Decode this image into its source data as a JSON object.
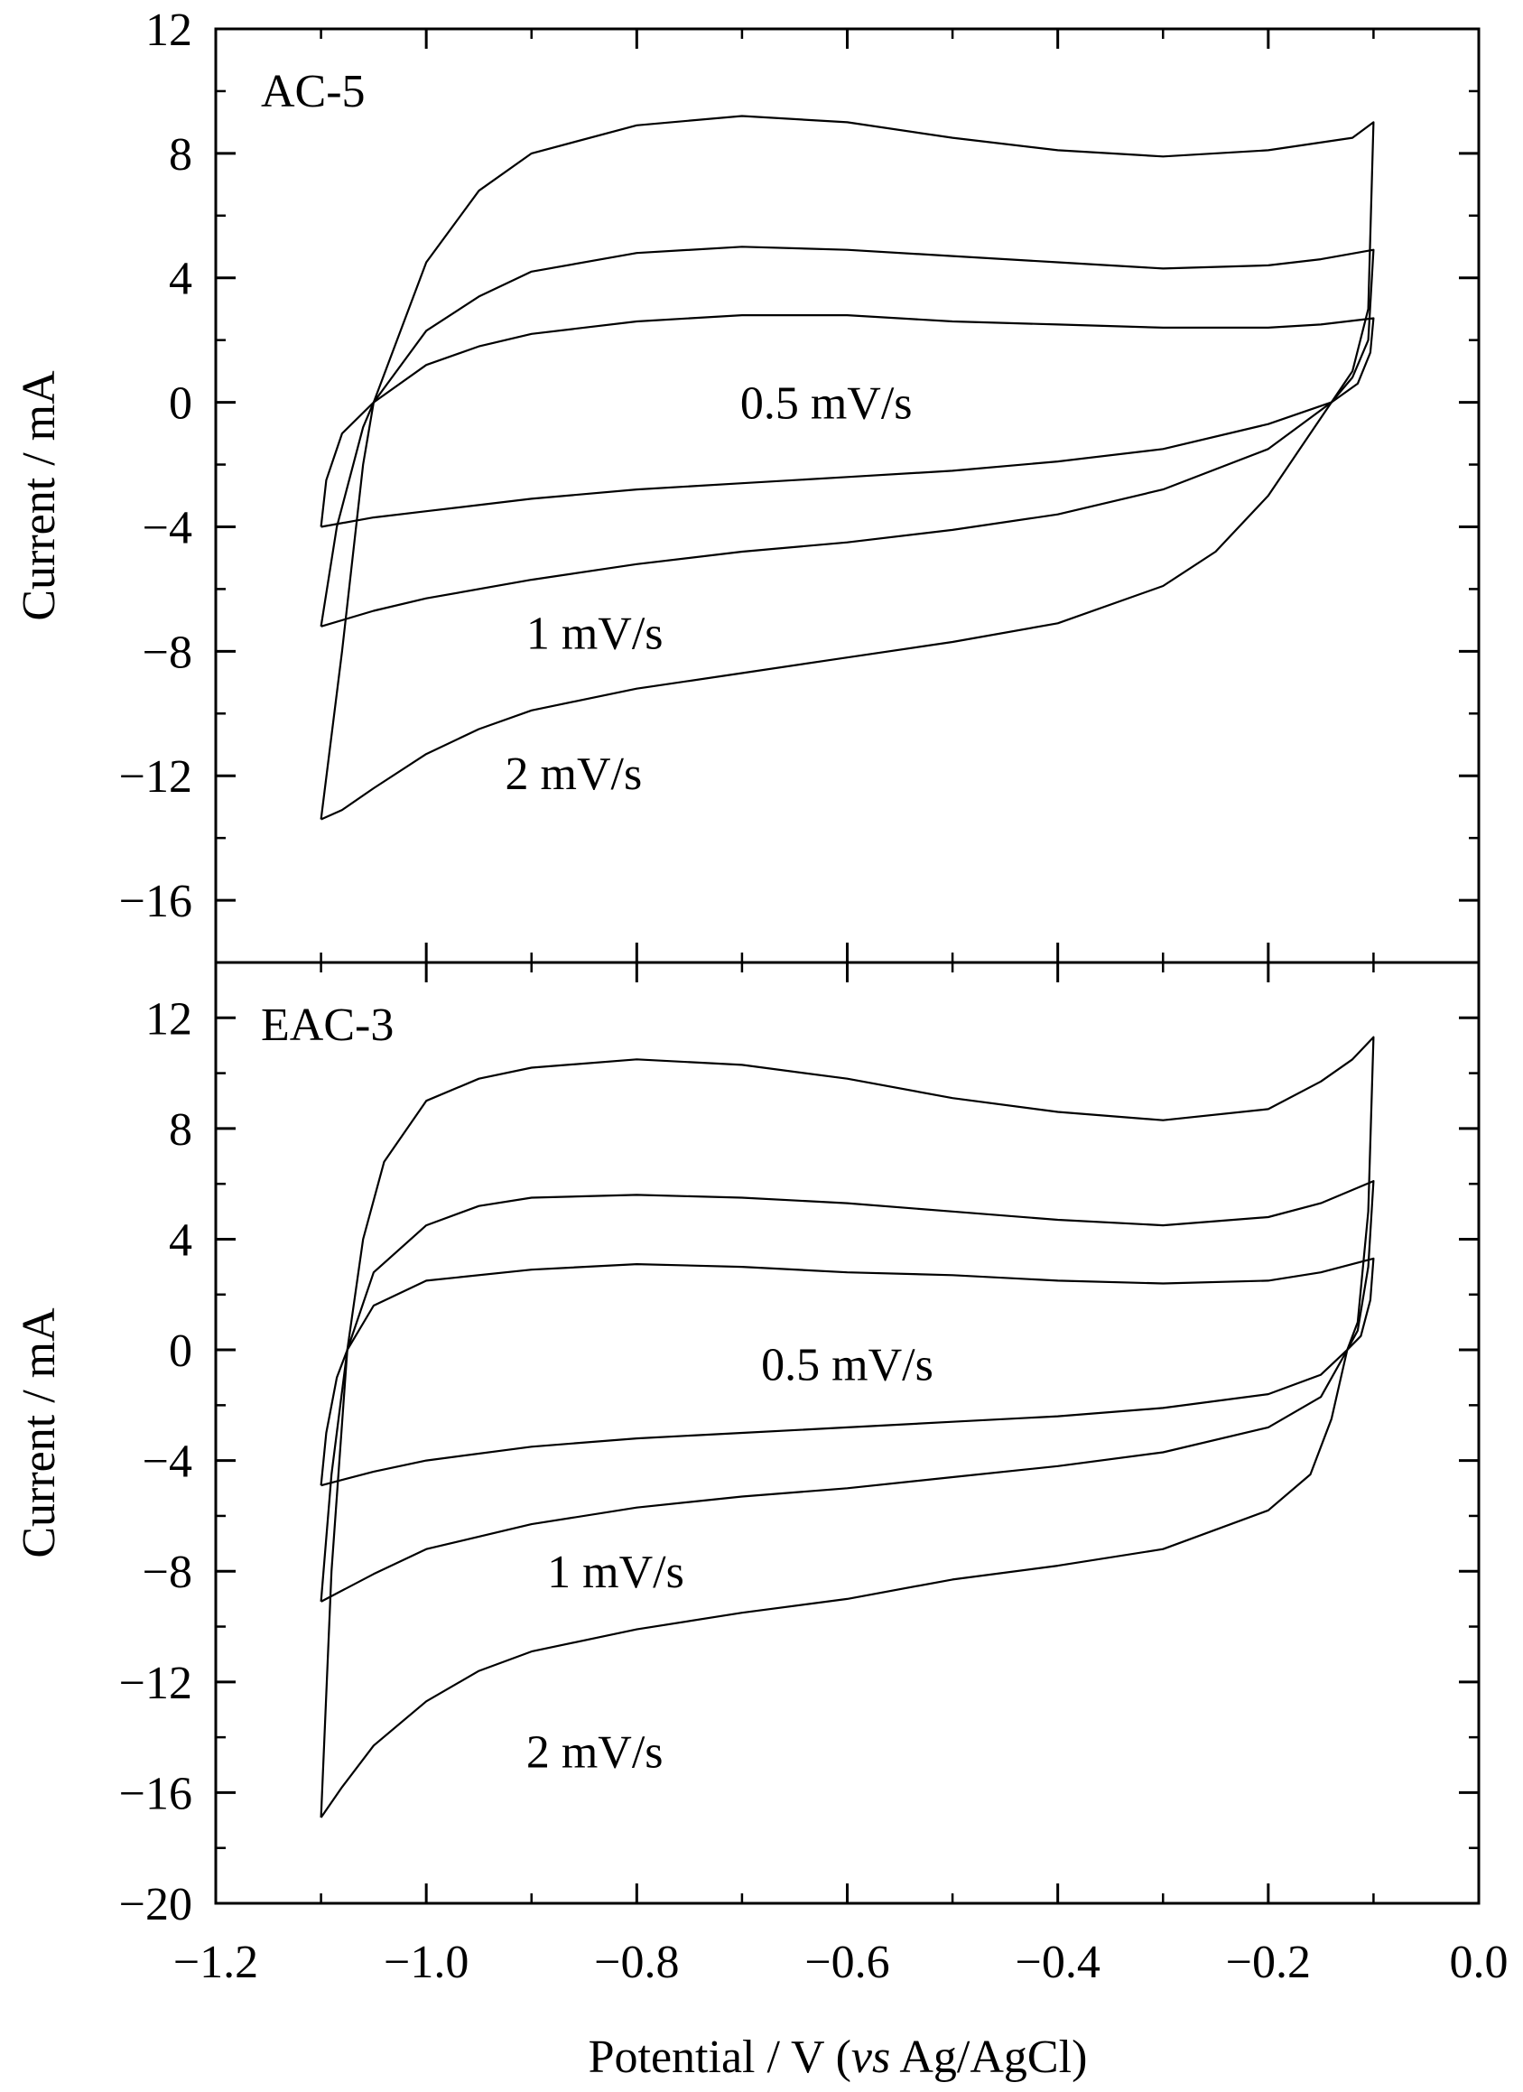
{
  "x_axis": {
    "label_parts": [
      "Potential / V (",
      "vs",
      " Ag/AgCl)"
    ],
    "range": [
      -1.2,
      0.0
    ],
    "ticks": [
      -1.2,
      -1.0,
      -0.8,
      -0.6,
      -0.4,
      -0.2,
      0.0
    ],
    "tick_labels": [
      "−1.2",
      "−1.0",
      "−0.8",
      "−0.6",
      "−0.4",
      "−0.2",
      "0.0"
    ],
    "minor_step": 0.1
  },
  "chart_data": [
    {
      "type": "line",
      "panel_label": "AC-5",
      "xlabel": "Potential / V (vs Ag/AgCl)",
      "ylabel": "Current / mA",
      "xlim": [
        -1.2,
        0.0
      ],
      "ylim": [
        -18,
        12
      ],
      "yticks": [
        -16,
        -12,
        -8,
        -4,
        0,
        4,
        8,
        12
      ],
      "ytick_labels": [
        "−16",
        "−12",
        "−8",
        "−4",
        "0",
        "4",
        "8",
        "12"
      ],
      "grid": false,
      "annotations": [
        {
          "text": "0.5 mV/s",
          "x": -0.62,
          "y": 0
        },
        {
          "text": "1 mV/s",
          "x": -0.84,
          "y": -7.4
        },
        {
          "text": "2 mV/s",
          "x": -0.86,
          "y": -11.9
        }
      ],
      "series": [
        {
          "label": "2 mV/s",
          "anodic": [
            [
              -1.1,
              -13.4
            ],
            [
              -1.08,
              -8.0
            ],
            [
              -1.06,
              -2.0
            ],
            [
              -1.05,
              0
            ],
            [
              -1.0,
              4.5
            ],
            [
              -0.95,
              6.8
            ],
            [
              -0.9,
              8.0
            ],
            [
              -0.8,
              8.9
            ],
            [
              -0.7,
              9.2
            ],
            [
              -0.6,
              9.0
            ],
            [
              -0.5,
              8.5
            ],
            [
              -0.4,
              8.1
            ],
            [
              -0.3,
              7.9
            ],
            [
              -0.2,
              8.1
            ],
            [
              -0.12,
              8.5
            ],
            [
              -0.1,
              9.0
            ]
          ],
          "cathodic": [
            [
              -0.1,
              9.0
            ],
            [
              -0.105,
              3.0
            ],
            [
              -0.12,
              1.0
            ],
            [
              -0.14,
              0
            ],
            [
              -0.17,
              -1.5
            ],
            [
              -0.2,
              -3.0
            ],
            [
              -0.25,
              -4.8
            ],
            [
              -0.3,
              -5.9
            ],
            [
              -0.4,
              -7.1
            ],
            [
              -0.5,
              -7.7
            ],
            [
              -0.6,
              -8.2
            ],
            [
              -0.7,
              -8.7
            ],
            [
              -0.8,
              -9.2
            ],
            [
              -0.9,
              -9.9
            ],
            [
              -0.95,
              -10.5
            ],
            [
              -1.0,
              -11.3
            ],
            [
              -1.05,
              -12.4
            ],
            [
              -1.08,
              -13.1
            ],
            [
              -1.1,
              -13.4
            ]
          ]
        },
        {
          "label": "1 mV/s",
          "anodic": [
            [
              -1.1,
              -7.2
            ],
            [
              -1.085,
              -4.0
            ],
            [
              -1.06,
              -0.8
            ],
            [
              -1.05,
              0
            ],
            [
              -1.0,
              2.3
            ],
            [
              -0.95,
              3.4
            ],
            [
              -0.9,
              4.2
            ],
            [
              -0.8,
              4.8
            ],
            [
              -0.7,
              5.0
            ],
            [
              -0.6,
              4.9
            ],
            [
              -0.5,
              4.7
            ],
            [
              -0.4,
              4.5
            ],
            [
              -0.3,
              4.3
            ],
            [
              -0.2,
              4.4
            ],
            [
              -0.15,
              4.6
            ],
            [
              -0.1,
              4.9
            ]
          ],
          "cathodic": [
            [
              -0.1,
              4.9
            ],
            [
              -0.105,
              2.0
            ],
            [
              -0.12,
              0.8
            ],
            [
              -0.14,
              0
            ],
            [
              -0.2,
              -1.5
            ],
            [
              -0.3,
              -2.8
            ],
            [
              -0.4,
              -3.6
            ],
            [
              -0.5,
              -4.1
            ],
            [
              -0.6,
              -4.5
            ],
            [
              -0.7,
              -4.8
            ],
            [
              -0.8,
              -5.2
            ],
            [
              -0.9,
              -5.7
            ],
            [
              -1.0,
              -6.3
            ],
            [
              -1.05,
              -6.7
            ],
            [
              -1.1,
              -7.2
            ]
          ]
        },
        {
          "label": "0.5 mV/s",
          "anodic": [
            [
              -1.1,
              -4.0
            ],
            [
              -1.095,
              -2.5
            ],
            [
              -1.08,
              -1.0
            ],
            [
              -1.05,
              0
            ],
            [
              -1.0,
              1.2
            ],
            [
              -0.95,
              1.8
            ],
            [
              -0.9,
              2.2
            ],
            [
              -0.8,
              2.6
            ],
            [
              -0.7,
              2.8
            ],
            [
              -0.6,
              2.8
            ],
            [
              -0.5,
              2.6
            ],
            [
              -0.4,
              2.5
            ],
            [
              -0.3,
              2.4
            ],
            [
              -0.2,
              2.4
            ],
            [
              -0.15,
              2.5
            ],
            [
              -0.1,
              2.7
            ]
          ],
          "cathodic": [
            [
              -0.1,
              2.7
            ],
            [
              -0.103,
              1.6
            ],
            [
              -0.115,
              0.6
            ],
            [
              -0.14,
              0
            ],
            [
              -0.2,
              -0.7
            ],
            [
              -0.3,
              -1.5
            ],
            [
              -0.4,
              -1.9
            ],
            [
              -0.5,
              -2.2
            ],
            [
              -0.6,
              -2.4
            ],
            [
              -0.7,
              -2.6
            ],
            [
              -0.8,
              -2.8
            ],
            [
              -0.9,
              -3.1
            ],
            [
              -1.0,
              -3.5
            ],
            [
              -1.05,
              -3.7
            ],
            [
              -1.1,
              -4.0
            ]
          ]
        }
      ]
    },
    {
      "type": "line",
      "panel_label": "EAC-3",
      "xlabel": "Potential / V (vs Ag/AgCl)",
      "ylabel": "Current / mA",
      "xlim": [
        -1.2,
        0.0
      ],
      "ylim": [
        -20,
        14
      ],
      "yticks": [
        -20,
        -16,
        -12,
        -8,
        -4,
        0,
        4,
        8,
        12
      ],
      "ytick_labels": [
        "−20",
        "−16",
        "−12",
        "−8",
        "−4",
        "0",
        "4",
        "8",
        "12"
      ],
      "grid": false,
      "annotations": [
        {
          "text": "0.5 mV/s",
          "x": -0.6,
          "y": -0.5
        },
        {
          "text": "1 mV/s",
          "x": -0.82,
          "y": -8.0
        },
        {
          "text": "2 mV/s",
          "x": -0.84,
          "y": -14.5
        }
      ],
      "series": [
        {
          "label": "2 mV/s",
          "anodic": [
            [
              -1.1,
              -16.9
            ],
            [
              -1.09,
              -8.0
            ],
            [
              -1.075,
              0
            ],
            [
              -1.06,
              4.0
            ],
            [
              -1.04,
              6.8
            ],
            [
              -1.0,
              9.0
            ],
            [
              -0.95,
              9.8
            ],
            [
              -0.9,
              10.2
            ],
            [
              -0.8,
              10.5
            ],
            [
              -0.7,
              10.3
            ],
            [
              -0.6,
              9.8
            ],
            [
              -0.5,
              9.1
            ],
            [
              -0.4,
              8.6
            ],
            [
              -0.3,
              8.3
            ],
            [
              -0.2,
              8.7
            ],
            [
              -0.15,
              9.7
            ],
            [
              -0.12,
              10.5
            ],
            [
              -0.1,
              11.3
            ]
          ],
          "cathodic": [
            [
              -0.1,
              11.3
            ],
            [
              -0.105,
              5.0
            ],
            [
              -0.115,
              1.0
            ],
            [
              -0.125,
              0
            ],
            [
              -0.14,
              -2.5
            ],
            [
              -0.16,
              -4.5
            ],
            [
              -0.2,
              -5.8
            ],
            [
              -0.3,
              -7.2
            ],
            [
              -0.4,
              -7.8
            ],
            [
              -0.5,
              -8.3
            ],
            [
              -0.6,
              -9.0
            ],
            [
              -0.7,
              -9.5
            ],
            [
              -0.8,
              -10.1
            ],
            [
              -0.9,
              -10.9
            ],
            [
              -0.95,
              -11.6
            ],
            [
              -1.0,
              -12.7
            ],
            [
              -1.05,
              -14.3
            ],
            [
              -1.08,
              -15.8
            ],
            [
              -1.1,
              -16.9
            ]
          ]
        },
        {
          "label": "1 mV/s",
          "anodic": [
            [
              -1.1,
              -9.1
            ],
            [
              -1.09,
              -4.5
            ],
            [
              -1.075,
              0
            ],
            [
              -1.05,
              2.8
            ],
            [
              -1.0,
              4.5
            ],
            [
              -0.95,
              5.2
            ],
            [
              -0.9,
              5.5
            ],
            [
              -0.8,
              5.6
            ],
            [
              -0.7,
              5.5
            ],
            [
              -0.6,
              5.3
            ],
            [
              -0.5,
              5.0
            ],
            [
              -0.4,
              4.7
            ],
            [
              -0.3,
              4.5
            ],
            [
              -0.2,
              4.8
            ],
            [
              -0.15,
              5.3
            ],
            [
              -0.1,
              6.1
            ]
          ],
          "cathodic": [
            [
              -0.1,
              6.1
            ],
            [
              -0.105,
              3.0
            ],
            [
              -0.115,
              0.7
            ],
            [
              -0.125,
              0
            ],
            [
              -0.15,
              -1.7
            ],
            [
              -0.2,
              -2.8
            ],
            [
              -0.3,
              -3.7
            ],
            [
              -0.4,
              -4.2
            ],
            [
              -0.5,
              -4.6
            ],
            [
              -0.6,
              -5.0
            ],
            [
              -0.7,
              -5.3
            ],
            [
              -0.8,
              -5.7
            ],
            [
              -0.9,
              -6.3
            ],
            [
              -1.0,
              -7.2
            ],
            [
              -1.05,
              -8.1
            ],
            [
              -1.1,
              -9.1
            ]
          ]
        },
        {
          "label": "0.5 mV/s",
          "anodic": [
            [
              -1.1,
              -4.9
            ],
            [
              -1.095,
              -3.0
            ],
            [
              -1.085,
              -1.0
            ],
            [
              -1.075,
              0
            ],
            [
              -1.05,
              1.6
            ],
            [
              -1.0,
              2.5
            ],
            [
              -0.9,
              2.9
            ],
            [
              -0.8,
              3.1
            ],
            [
              -0.7,
              3.0
            ],
            [
              -0.6,
              2.8
            ],
            [
              -0.5,
              2.7
            ],
            [
              -0.4,
              2.5
            ],
            [
              -0.3,
              2.4
            ],
            [
              -0.2,
              2.5
            ],
            [
              -0.15,
              2.8
            ],
            [
              -0.1,
              3.3
            ]
          ],
          "cathodic": [
            [
              -0.1,
              3.3
            ],
            [
              -0.103,
              1.8
            ],
            [
              -0.112,
              0.5
            ],
            [
              -0.125,
              0
            ],
            [
              -0.15,
              -0.9
            ],
            [
              -0.2,
              -1.6
            ],
            [
              -0.3,
              -2.1
            ],
            [
              -0.4,
              -2.4
            ],
            [
              -0.5,
              -2.6
            ],
            [
              -0.6,
              -2.8
            ],
            [
              -0.7,
              -3.0
            ],
            [
              -0.8,
              -3.2
            ],
            [
              -0.9,
              -3.5
            ],
            [
              -1.0,
              -4.0
            ],
            [
              -1.05,
              -4.4
            ],
            [
              -1.1,
              -4.9
            ]
          ]
        }
      ]
    }
  ]
}
